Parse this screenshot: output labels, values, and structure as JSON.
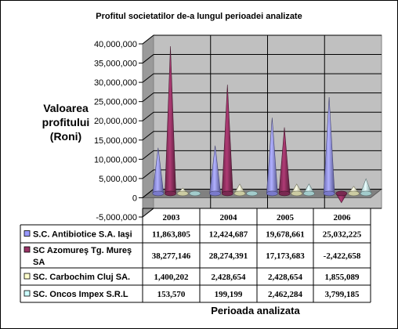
{
  "chart_data": {
    "type": "3d-cone-column",
    "title": "Profitul societatilor de-a lungul perioadei analizate",
    "ylabel_lines": [
      "Valoarea",
      "profitului",
      "(Roni)"
    ],
    "xlabel": "Perioada analizata",
    "ylim": [
      -5000000,
      40000000
    ],
    "yticks": [
      {
        "value": 40000000,
        "label": "40,000,000"
      },
      {
        "value": 35000000,
        "label": "35,000,000"
      },
      {
        "value": 30000000,
        "label": "30,000,000"
      },
      {
        "value": 25000000,
        "label": "25,000,000"
      },
      {
        "value": 20000000,
        "label": "20,000,000"
      },
      {
        "value": 15000000,
        "label": "15,000,000"
      },
      {
        "value": 10000000,
        "label": "10,000,000"
      },
      {
        "value": 5000000,
        "label": "5,000,000"
      },
      {
        "value": 0,
        "label": "0"
      },
      {
        "value": -5000000,
        "label": "-5,000,000"
      }
    ],
    "grid": true,
    "legend": "data-table-below",
    "categories": [
      "2003",
      "2004",
      "2005",
      "2006"
    ],
    "series": [
      {
        "name_lines": [
          "S.C. Antibiotice S.A. Iaşi"
        ],
        "color": "#9999FF",
        "values": [
          11863805,
          12424687,
          19678661,
          25032225
        ],
        "labels": [
          "11,863,805",
          "12,424,687",
          "19,678,661",
          "25,032,225"
        ]
      },
      {
        "name_lines": [
          "SC Azomureş Tg. Mureş",
          "SA"
        ],
        "color": "#993366",
        "values": [
          38277146,
          28274391,
          17173683,
          -2422658
        ],
        "labels": [
          "38,277,146",
          "28,274,391",
          "17,173,683",
          "-2,422,658"
        ]
      },
      {
        "name_lines": [
          "SC. Carbochim Cluj SA."
        ],
        "color": "#FFFFCC",
        "values": [
          1400202,
          2428654,
          2428654,
          1855089
        ],
        "labels": [
          "1,400,202",
          "2,428,654",
          "2,428,654",
          "1,855,089"
        ]
      },
      {
        "name_lines": [
          "SC. Oncos Impex S.R.L"
        ],
        "color": "#CCFFFF",
        "values": [
          153570,
          199199,
          2462284,
          3799185
        ],
        "labels": [
          "153,570",
          "199,199",
          "2,462,284",
          "3,799,185"
        ]
      }
    ]
  }
}
